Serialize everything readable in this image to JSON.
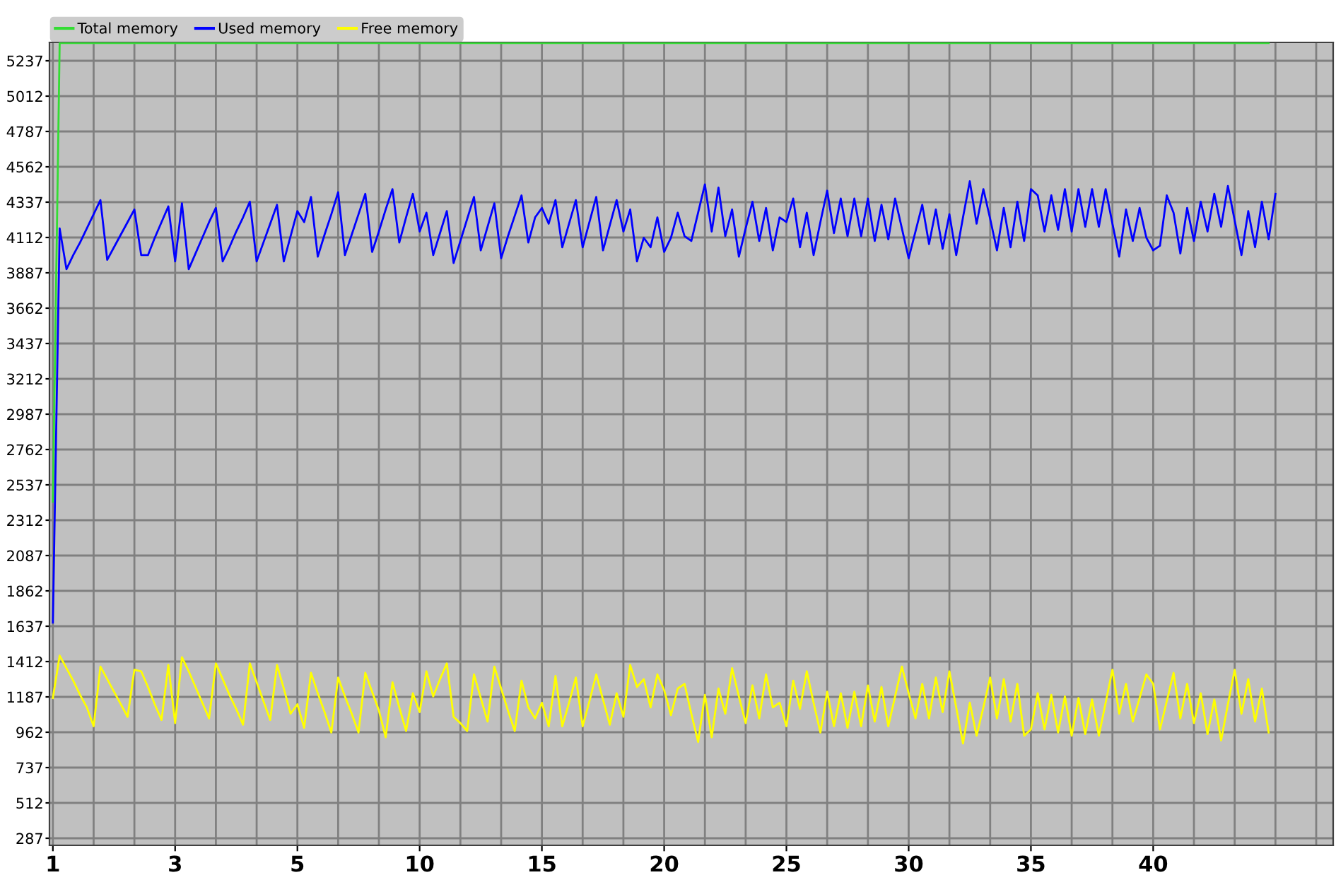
{
  "chart_data": {
    "type": "line",
    "categories": [
      "1",
      null,
      null,
      null,
      null,
      null,
      null,
      null,
      null,
      null,
      null,
      null,
      null,
      null,
      null,
      null,
      null,
      null,
      "3",
      null,
      null,
      null,
      null,
      null,
      null,
      null,
      null,
      null,
      null,
      null,
      null,
      null,
      null,
      null,
      null,
      null,
      "5",
      null,
      null,
      null,
      null,
      null,
      null,
      null,
      null,
      null,
      null,
      null,
      null,
      null,
      null,
      null,
      null,
      null,
      "10",
      null,
      null,
      null,
      null,
      null,
      null,
      null,
      null,
      null,
      null,
      null,
      null,
      null,
      null,
      null,
      null,
      null,
      "15",
      null,
      null,
      null,
      null,
      null,
      null,
      null,
      null,
      null,
      null,
      null,
      null,
      null,
      null,
      null,
      null,
      null,
      "20",
      null,
      null,
      null,
      null,
      null,
      null,
      null,
      null,
      null,
      null,
      null,
      null,
      null,
      null,
      null,
      null,
      null,
      "25",
      null,
      null,
      null,
      null,
      null,
      null,
      null,
      null,
      null,
      null,
      null,
      null,
      null,
      null,
      null,
      null,
      null,
      "30",
      null,
      null,
      null,
      null,
      null,
      null,
      null,
      null,
      null,
      null,
      null,
      null,
      null,
      null,
      null,
      null,
      null,
      "35",
      null,
      null,
      null,
      null,
      null,
      null,
      null,
      null,
      null,
      null,
      null,
      null,
      null,
      null,
      null,
      null,
      null,
      "40",
      null,
      null,
      null,
      null,
      null,
      null,
      null,
      null,
      null,
      null,
      null,
      null,
      null,
      null,
      null,
      null,
      null,
      null,
      null,
      null,
      null,
      null,
      null,
      null,
      null,
      null
    ],
    "series": [
      {
        "name": "Total memory",
        "color": "#33dd33",
        "values": [
          2430,
          5350,
          5350,
          5350,
          5350,
          5350,
          5350,
          5350,
          5350,
          5350,
          5350,
          5350,
          5350,
          5350,
          5350,
          5350,
          5350,
          5350,
          5350,
          5350,
          5350,
          5350,
          5350,
          5350,
          5350,
          5350,
          5350,
          5350,
          5350,
          5350,
          5350,
          5350,
          5350,
          5350,
          5350,
          5350,
          5350,
          5350,
          5350,
          5350,
          5350,
          5350,
          5350,
          5350,
          5350,
          5350,
          5350,
          5350,
          5350,
          5350,
          5350,
          5350,
          5350,
          5350,
          5350,
          5350,
          5350,
          5350,
          5350,
          5350,
          5350,
          5350,
          5350,
          5350,
          5350,
          5350,
          5350,
          5350,
          5350,
          5350,
          5350,
          5350,
          5350,
          5350,
          5350,
          5350,
          5350,
          5350,
          5350,
          5350,
          5350,
          5350,
          5350,
          5350,
          5350,
          5350,
          5350,
          5350,
          5350,
          5350,
          5350,
          5350,
          5350,
          5350,
          5350,
          5350,
          5350,
          5350,
          5350,
          5350,
          5350,
          5350,
          5350,
          5350,
          5350,
          5350,
          5350,
          5350,
          5350,
          5350,
          5350,
          5350,
          5350,
          5350,
          5350,
          5350,
          5350,
          5350,
          5350,
          5350,
          5350,
          5350,
          5350,
          5350,
          5350,
          5350,
          5350,
          5350,
          5350,
          5350,
          5350,
          5350,
          5350,
          5350,
          5350,
          5350,
          5350,
          5350,
          5350,
          5350,
          5350,
          5350,
          5350,
          5350,
          5350,
          5350,
          5350,
          5350,
          5350,
          5350,
          5350,
          5350,
          5350,
          5350,
          5350,
          5350,
          5350,
          5350,
          5350,
          5350,
          5350,
          5350,
          5350,
          5350,
          5350,
          5350,
          5350,
          5350,
          5350,
          5350,
          5350,
          5350,
          5350,
          5350,
          5350,
          5350,
          5350,
          5350,
          5350,
          5350,
          null,
          null,
          null,
          null,
          null,
          null,
          null,
          null,
          null
        ]
      },
      {
        "name": "Used memory",
        "color": "#0000ff",
        "values": [
          1660,
          4170,
          3910,
          4000,
          4080,
          4170,
          4260,
          4350,
          3970,
          4050,
          4130,
          4210,
          4290,
          4000,
          4000,
          4110,
          4210,
          4310,
          3960,
          4330,
          3910,
          4010,
          4110,
          4210,
          4300,
          3960,
          4050,
          4150,
          4240,
          4340,
          3960,
          4080,
          4200,
          4320,
          3960,
          4120,
          4280,
          4210,
          4370,
          3990,
          4130,
          4260,
          4400,
          4000,
          4130,
          4260,
          4390,
          4020,
          4150,
          4290,
          4420,
          4080,
          4240,
          4390,
          4150,
          4270,
          4000,
          4140,
          4280,
          3950,
          4090,
          4230,
          4370,
          4030,
          4180,
          4330,
          3980,
          4120,
          4250,
          4380,
          4080,
          4240,
          4300,
          4200,
          4350,
          4050,
          4200,
          4350,
          4050,
          4210,
          4370,
          4030,
          4190,
          4350,
          4150,
          4290,
          3960,
          4110,
          4050,
          4240,
          4020,
          4110,
          4270,
          4120,
          4090,
          4270,
          4450,
          4150,
          4430,
          4120,
          4290,
          3990,
          4170,
          4340,
          4090,
          4300,
          4030,
          4240,
          4210,
          4360,
          4050,
          4270,
          4000,
          4210,
          4410,
          4140,
          4360,
          4120,
          4360,
          4120,
          4360,
          4090,
          4320,
          4100,
          4360,
          4170,
          3980,
          4150,
          4320,
          4070,
          4290,
          4040,
          4260,
          4000,
          4240,
          4470,
          4200,
          4420,
          4230,
          4030,
          4300,
          4050,
          4340,
          4090,
          4420,
          4380,
          4150,
          4380,
          4160,
          4420,
          4150,
          4420,
          4180,
          4420,
          4180,
          4420,
          4200,
          3990,
          4290,
          4090,
          4300,
          4110,
          4030,
          4060,
          4380,
          4270,
          4010,
          4300,
          4090,
          4340,
          4150,
          4390,
          4180,
          4440,
          4220,
          4000,
          4280,
          4050,
          4340,
          4100,
          4390,
          null,
          null,
          null,
          null,
          null,
          null,
          null,
          null
        ]
      },
      {
        "name": "Free memory",
        "color": "#ffff00",
        "values": [
          1180,
          1450,
          1370,
          1290,
          1200,
          1120,
          1000,
          1380,
          1300,
          1220,
          1140,
          1060,
          1360,
          1350,
          1250,
          1140,
          1040,
          1390,
          1020,
          1440,
          1350,
          1250,
          1150,
          1050,
          1400,
          1300,
          1200,
          1110,
          1010,
          1400,
          1280,
          1160,
          1040,
          1390,
          1240,
          1080,
          1140,
          990,
          1340,
          1210,
          1090,
          960,
          1310,
          1190,
          1080,
          960,
          1340,
          1220,
          1100,
          930,
          1280,
          1120,
          970,
          1210,
          1090,
          1350,
          1190,
          1300,
          1400,
          1060,
          1020,
          970,
          1330,
          1180,
          1030,
          1380,
          1240,
          1100,
          970,
          1290,
          1120,
          1050,
          1150,
          1000,
          1320,
          1000,
          1150,
          1310,
          1000,
          1160,
          1330,
          1170,
          1010,
          1210,
          1060,
          1390,
          1250,
          1300,
          1120,
          1330,
          1230,
          1070,
          1240,
          1270,
          1080,
          900,
          1200,
          930,
          1240,
          1080,
          1370,
          1190,
          1020,
          1260,
          1050,
          1330,
          1120,
          1150,
          1000,
          1290,
          1110,
          1350,
          1150,
          960,
          1220,
          1000,
          1210,
          990,
          1220,
          1000,
          1260,
          1030,
          1250,
          1000,
          1190,
          1380,
          1210,
          1050,
          1270,
          1050,
          1310,
          1090,
          1350,
          1120,
          890,
          1150,
          940,
          1120,
          1310,
          1050,
          1300,
          1030,
          1270,
          940,
          980,
          1210,
          980,
          1200,
          960,
          1190,
          940,
          1180,
          950,
          1170,
          940,
          1150,
          1360,
          1080,
          1270,
          1030,
          1180,
          1330,
          1270,
          980,
          1160,
          1340,
          1050,
          1270,
          1020,
          1210,
          950,
          1170,
          910,
          1140,
          1360,
          1080,
          1300,
          1030,
          1240,
          960,
          null,
          null,
          null,
          null,
          null,
          null,
          null,
          null,
          null
        ]
      }
    ],
    "ylim": [
      242,
      5354
    ],
    "yticks": [
      287,
      512,
      737,
      962,
      1187,
      1412,
      1637,
      1862,
      2087,
      2312,
      2537,
      2762,
      2987,
      3212,
      3437,
      3662,
      3887,
      4112,
      4337,
      4562,
      4787,
      5012,
      5237
    ],
    "grid": true,
    "legend": "top left",
    "marker": "none",
    "line_style": "solid"
  }
}
